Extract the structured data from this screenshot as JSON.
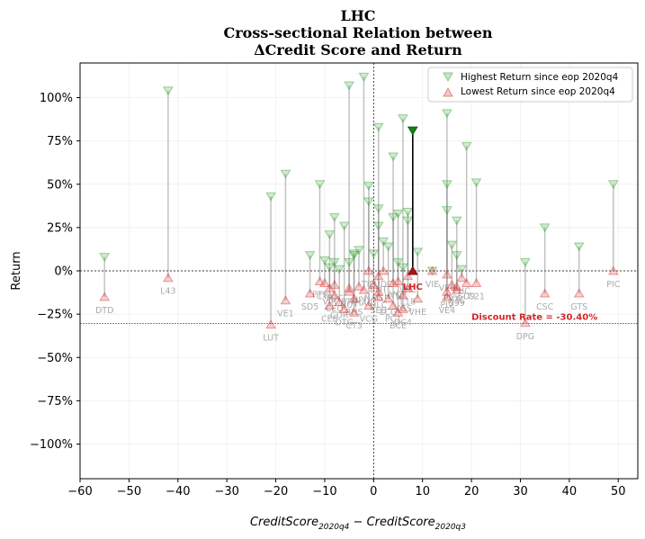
{
  "chart_data": {
    "type": "scatter",
    "title_lines": [
      "LHC",
      "Cross-sectional Relation between",
      "ΔCredit Score and Return"
    ],
    "xlabel": "CreditScore_2020q4 − CreditScore_2020q3",
    "xlabel_main": "CreditScore",
    "xlabel_sub1": "2020q4",
    "xlabel_minus": " − ",
    "xlabel_sub2": "2020q3",
    "ylabel": "Return",
    "xlim": [
      -60,
      54
    ],
    "ylim": [
      -1.2,
      1.2
    ],
    "xticks": [
      -60,
      -50,
      -40,
      -30,
      -20,
      -10,
      0,
      10,
      20,
      30,
      40,
      50
    ],
    "yticks": [
      -1.0,
      -0.75,
      -0.5,
      -0.25,
      0,
      0.25,
      0.5,
      0.75,
      1.0
    ],
    "ytick_labels": [
      "−100%",
      "−75%",
      "−50%",
      "−25%",
      "0%",
      "25%",
      "50%",
      "75%",
      "100%"
    ],
    "xtick_labels": [
      "−60",
      "−50",
      "−40",
      "−30",
      "−20",
      "−10",
      "0",
      "10",
      "20",
      "30",
      "40",
      "50"
    ],
    "grid": true,
    "legend_position": "top-right",
    "legend": [
      {
        "label": "Highest Return since eop 2020q4",
        "marker": "triangle-down",
        "color": "#2ca02c"
      },
      {
        "label": "Lowest Return since eop 2020q4",
        "marker": "triangle-up",
        "color": "#d62728"
      }
    ],
    "discount_rate": -0.304,
    "discount_label": "Discount Rate = -30.40%",
    "highlight": {
      "name": "LHC",
      "x": 8,
      "high": 0.81,
      "low": 0.0
    },
    "series": [
      {
        "name": "DTD",
        "x": -55,
        "high": 0.08,
        "low": -0.15
      },
      {
        "name": "L43",
        "x": -42,
        "high": 1.04,
        "low": -0.04
      },
      {
        "name": "LUT",
        "x": -21,
        "high": 0.43,
        "low": -0.31
      },
      {
        "name": "VE1",
        "x": -18,
        "high": 0.56,
        "low": -0.17
      },
      {
        "name": "SD5",
        "x": -13,
        "high": 0.09,
        "low": -0.13
      },
      {
        "name": "PTL",
        "x": -11,
        "high": 0.5,
        "low": -0.06
      },
      {
        "name": "CTA",
        "x": -10,
        "high": 0.06,
        "low": -0.07
      },
      {
        "name": "VIR",
        "x": -9,
        "high": 0.21,
        "low": -0.1
      },
      {
        "name": "CEE",
        "x": -9,
        "high": 0.02,
        "low": -0.2
      },
      {
        "name": "CEO",
        "x": -8,
        "high": 0.31,
        "low": -0.14
      },
      {
        "name": "TDC",
        "x": -8,
        "high": 0.05,
        "low": -0.08
      },
      {
        "name": "CDR",
        "x": -7,
        "high": 0.01,
        "low": -0.18
      },
      {
        "name": "DTG",
        "x": -6,
        "high": 0.26,
        "low": -0.22
      },
      {
        "name": "HUT",
        "x": -5,
        "high": 1.07,
        "low": -0.12
      },
      {
        "name": "PTC",
        "x": -5,
        "high": 0.05,
        "low": -0.1
      },
      {
        "name": "BHS",
        "x": -4,
        "high": 0.1,
        "low": -0.16
      },
      {
        "name": "CT3",
        "x": -4,
        "high": 0.09,
        "low": -0.24
      },
      {
        "name": "HPI",
        "x": -3,
        "high": 0.12,
        "low": -0.09
      },
      {
        "name": "HAC",
        "x": -2,
        "high": 1.12,
        "low": -0.11
      },
      {
        "name": "TID",
        "x": -1,
        "high": 0.49,
        "low": 0.0
      },
      {
        "name": "VCG",
        "x": -1,
        "high": 0.4,
        "low": -0.2
      },
      {
        "name": "NAG",
        "x": 0,
        "high": 0.1,
        "low": -0.08
      },
      {
        "name": "HLC",
        "x": 1,
        "high": 0.83,
        "low": -0.12
      },
      {
        "name": "BDT",
        "x": 1,
        "high": 0.36,
        "low": -0.03
      },
      {
        "name": "SEB",
        "x": 1,
        "high": 0.26,
        "low": -0.15
      },
      {
        "name": "UDC",
        "x": 2,
        "high": 0.17,
        "low": 0.0
      },
      {
        "name": "LCG",
        "x": 3,
        "high": 0.14,
        "low": -0.16
      },
      {
        "name": "HTN",
        "x": 4,
        "high": 0.66,
        "low": -0.07
      },
      {
        "name": "PC1",
        "x": 4,
        "high": 0.31,
        "low": -0.2
      },
      {
        "name": "VC2",
        "x": 5,
        "high": 0.33,
        "low": -0.06
      },
      {
        "name": "BCE",
        "x": 5,
        "high": 0.05,
        "low": -0.24
      },
      {
        "name": "VGS",
        "x": 6,
        "high": 0.88,
        "low": -0.14
      },
      {
        "name": "DC4",
        "x": 6,
        "high": 0.02,
        "low": -0.22
      },
      {
        "name": "L18",
        "x": 7,
        "high": 0.34,
        "low": -0.1
      },
      {
        "name": "VRC",
        "x": 7,
        "high": 0.29,
        "low": -0.03
      },
      {
        "name": "VHE",
        "x": 9,
        "high": 0.11,
        "low": -0.16
      },
      {
        "name": "VIE",
        "x": 12,
        "high": 0.0,
        "low": 0.0
      },
      {
        "name": "PIV",
        "x": 15,
        "high": 0.91,
        "low": -0.12
      },
      {
        "name": "VE4",
        "x": 15,
        "high": 0.5,
        "low": -0.15
      },
      {
        "name": "VE8",
        "x": 15,
        "high": 0.35,
        "low": -0.02
      },
      {
        "name": "PVX",
        "x": 16,
        "high": 0.15,
        "low": -0.08
      },
      {
        "name": "S99",
        "x": 17,
        "high": 0.29,
        "low": -0.11
      },
      {
        "name": "BTC",
        "x": 17,
        "high": 0.09,
        "low": -0.09
      },
      {
        "name": "PHC",
        "x": 18,
        "high": 0.01,
        "low": -0.04
      },
      {
        "name": "SD9",
        "x": 19,
        "high": 0.72,
        "low": -0.07
      },
      {
        "name": "C21",
        "x": 21,
        "high": 0.51,
        "low": -0.07
      },
      {
        "name": "DPG",
        "x": 31,
        "high": 0.05,
        "low": -0.3
      },
      {
        "name": "CSC",
        "x": 35,
        "high": 0.25,
        "low": -0.13
      },
      {
        "name": "GTS",
        "x": 42,
        "high": 0.14,
        "low": -0.13
      },
      {
        "name": "PIC",
        "x": 49,
        "high": 0.5,
        "low": 0.0
      }
    ]
  }
}
